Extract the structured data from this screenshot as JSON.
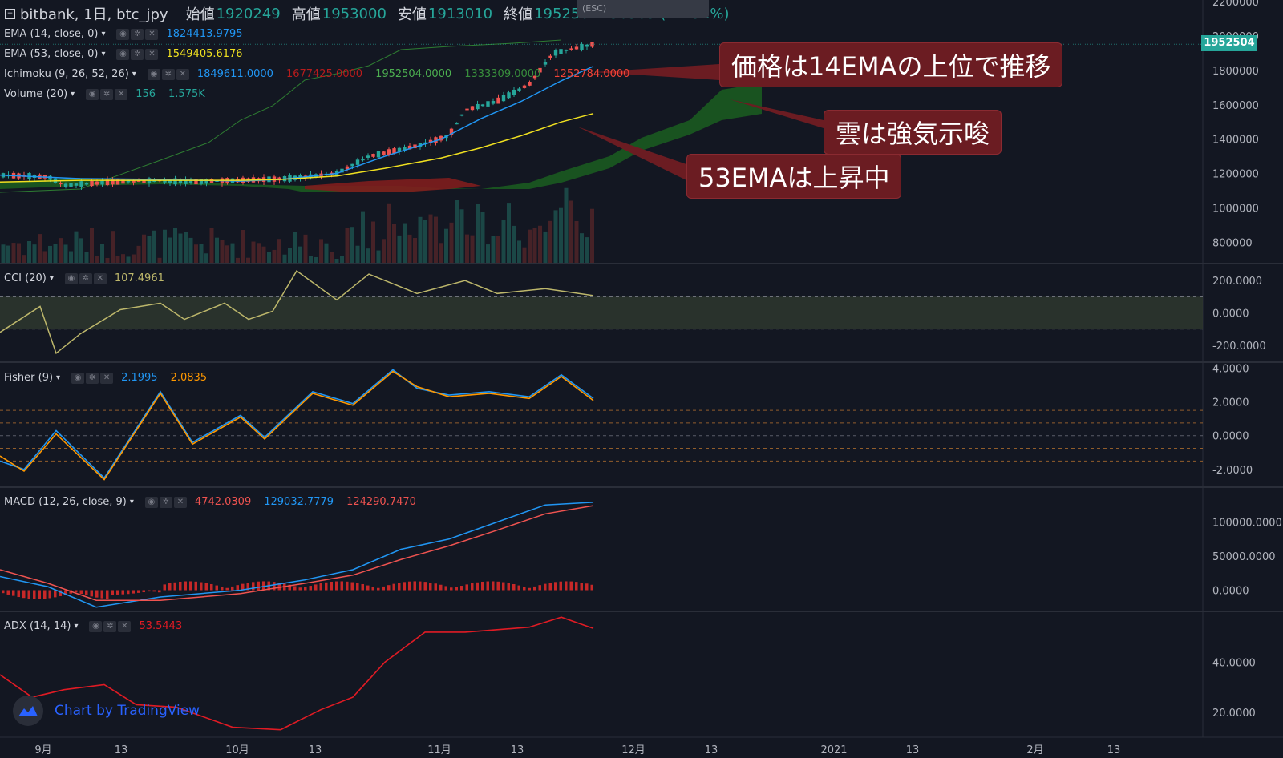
{
  "header": {
    "symbol": "bitbank, 1日, btc_jpy",
    "open_label": "始値",
    "open": "1920249",
    "high_label": "高値",
    "high": "1953000",
    "low_label": "安値",
    "low": "1913010",
    "close_label": "終値",
    "close": "1952504",
    "change": "36503 (+1.91%)",
    "esc_hint": "(ESC)"
  },
  "legends": {
    "ema14": {
      "name": "EMA (14, close, 0)",
      "value": "1824413.9795"
    },
    "ema53": {
      "name": "EMA (53, close, 0)",
      "value": "1549405.6176"
    },
    "ichimoku": {
      "name": "Ichimoku (9, 26, 52, 26)",
      "v1": "1849611.0000",
      "v2": "1677425.0000",
      "v3": "1952504.0000",
      "v4": "1333309.0000",
      "v5": "1252784.0000"
    },
    "volume": {
      "name": "Volume (20)",
      "v1": "156",
      "v2": "1.575K"
    },
    "cci": {
      "name": "CCI (20)",
      "value": "107.4961"
    },
    "fisher": {
      "name": "Fisher (9)",
      "v1": "2.1995",
      "v2": "2.0835"
    },
    "macd": {
      "name": "MACD (12, 26, close, 9)",
      "v1": "4742.0309",
      "v2": "129032.7779",
      "v3": "124290.7470"
    },
    "adx": {
      "name": "ADX (14, 14)",
      "value": "53.5443"
    }
  },
  "annotations": {
    "a1": "価格は14EMAの上位で推移",
    "a2": "雲は強気示唆",
    "a3": "53EMAは上昇中"
  },
  "price_tag": "1952504",
  "watermark": "Chart by TradingView",
  "colors": {
    "background": "#131722",
    "up": "#26a69a",
    "down": "#ef5350",
    "ema14": "#2196f3",
    "ema53": "#f0e020",
    "cloud_bull": "#1b5e20",
    "cloud_bear": "#7f1d1d",
    "cci": "#bdb76b",
    "fisher1": "#2196f3",
    "fisher2": "#ff9800",
    "macd_line": "#2196f3",
    "macd_signal": "#ef5350",
    "adx": "#e01b24",
    "callout_bg": "#6b1c22"
  },
  "chart_data": [
    {
      "type": "line",
      "title": "bitbank, 1日, btc_jpy",
      "x_ticks": [
        "9月",
        "13",
        "10月",
        "13",
        "11月",
        "13",
        "12月",
        "13",
        "2021",
        "13",
        "2月",
        "13"
      ],
      "y_ticks": [
        "2200000",
        "2000000",
        "1800000",
        "1600000",
        "1400000",
        "1200000",
        "1000000",
        "800000"
      ],
      "ylim": [
        680000,
        2210000
      ],
      "series": [
        {
          "name": "EMA (14, close, 0)",
          "values_x": [
            0,
            100,
            200,
            300,
            350,
            420,
            480,
            550,
            600,
            650,
            700,
            740
          ],
          "values": [
            1190000,
            1170000,
            1165000,
            1155000,
            1165000,
            1200000,
            1300000,
            1400000,
            1520000,
            1620000,
            1740000,
            1824000
          ]
        },
        {
          "name": "EMA (53, close, 0)",
          "values_x": [
            0,
            100,
            200,
            300,
            350,
            420,
            480,
            550,
            600,
            650,
            700,
            740
          ],
          "values": [
            1150000,
            1160000,
            1160000,
            1160000,
            1165000,
            1185000,
            1230000,
            1290000,
            1350000,
            1420000,
            1500000,
            1549000
          ]
        }
      ],
      "last_price": 1952504
    },
    {
      "type": "line",
      "title": "CCI (20)",
      "y_ticks": [
        "200.0000",
        "0.0000",
        "-200.0000"
      ],
      "ylim": [
        -300,
        300
      ],
      "bands": [
        100,
        -100
      ],
      "values_x": [
        0,
        50,
        70,
        100,
        150,
        200,
        230,
        280,
        310,
        340,
        370,
        420,
        460,
        520,
        580,
        620,
        680,
        740
      ],
      "values": [
        -120,
        40,
        -250,
        -130,
        20,
        60,
        -40,
        60,
        -40,
        10,
        260,
        80,
        240,
        120,
        200,
        120,
        150,
        107
      ]
    },
    {
      "type": "line",
      "title": "Fisher (9)",
      "y_ticks": [
        "4.0000",
        "2.0000",
        "0.0000",
        "-2.0000"
      ],
      "ylim": [
        -3,
        4.3
      ],
      "levels": [
        1.5,
        0.75,
        0,
        -0.75,
        -1.5
      ],
      "series": [
        {
          "name": "Fisher",
          "values_x": [
            0,
            30,
            70,
            130,
            200,
            240,
            300,
            330,
            390,
            440,
            490,
            520,
            560,
            610,
            660,
            700,
            740
          ],
          "values": [
            -1.5,
            -2.0,
            0.3,
            -2.5,
            2.6,
            -0.4,
            1.2,
            -0.1,
            2.6,
            1.9,
            3.9,
            2.8,
            2.4,
            2.6,
            2.3,
            3.6,
            2.2
          ]
        },
        {
          "name": "Signal",
          "values_x": [
            0,
            30,
            70,
            130,
            200,
            240,
            300,
            330,
            390,
            440,
            490,
            520,
            560,
            610,
            660,
            700,
            740
          ],
          "values": [
            -1.2,
            -2.1,
            0.1,
            -2.6,
            2.5,
            -0.5,
            1.1,
            -0.2,
            2.5,
            1.8,
            3.8,
            2.9,
            2.3,
            2.5,
            2.2,
            3.5,
            2.08
          ]
        }
      ]
    },
    {
      "type": "line",
      "title": "MACD (12, 26, close, 9)",
      "y_ticks": [
        "100000.0000",
        "50000.0000",
        "0.0000"
      ],
      "ylim": [
        -30000,
        150000
      ],
      "series": [
        {
          "name": "MACD",
          "values_x": [
            0,
            60,
            120,
            200,
            300,
            380,
            440,
            500,
            560,
            620,
            680,
            740
          ],
          "values": [
            20000,
            5000,
            -25000,
            -10000,
            0,
            15000,
            30000,
            60000,
            75000,
            100000,
            125000,
            129000
          ]
        },
        {
          "name": "Signal",
          "values_x": [
            0,
            60,
            120,
            200,
            300,
            380,
            440,
            500,
            560,
            620,
            680,
            740
          ],
          "values": [
            30000,
            10000,
            -15000,
            -15000,
            -5000,
            10000,
            22000,
            45000,
            65000,
            88000,
            112000,
            124000
          ]
        }
      ]
    },
    {
      "type": "line",
      "title": "ADX (14, 14)",
      "y_ticks": [
        "40.0000",
        "20.0000"
      ],
      "ylim": [
        10,
        60
      ],
      "values_x": [
        0,
        40,
        80,
        130,
        170,
        220,
        290,
        350,
        400,
        440,
        480,
        530,
        580,
        620,
        660,
        700,
        740
      ],
      "values": [
        35,
        26,
        29,
        31,
        23,
        22,
        14,
        13,
        21,
        26,
        40,
        52,
        52,
        53,
        54,
        58,
        53.5
      ]
    }
  ]
}
